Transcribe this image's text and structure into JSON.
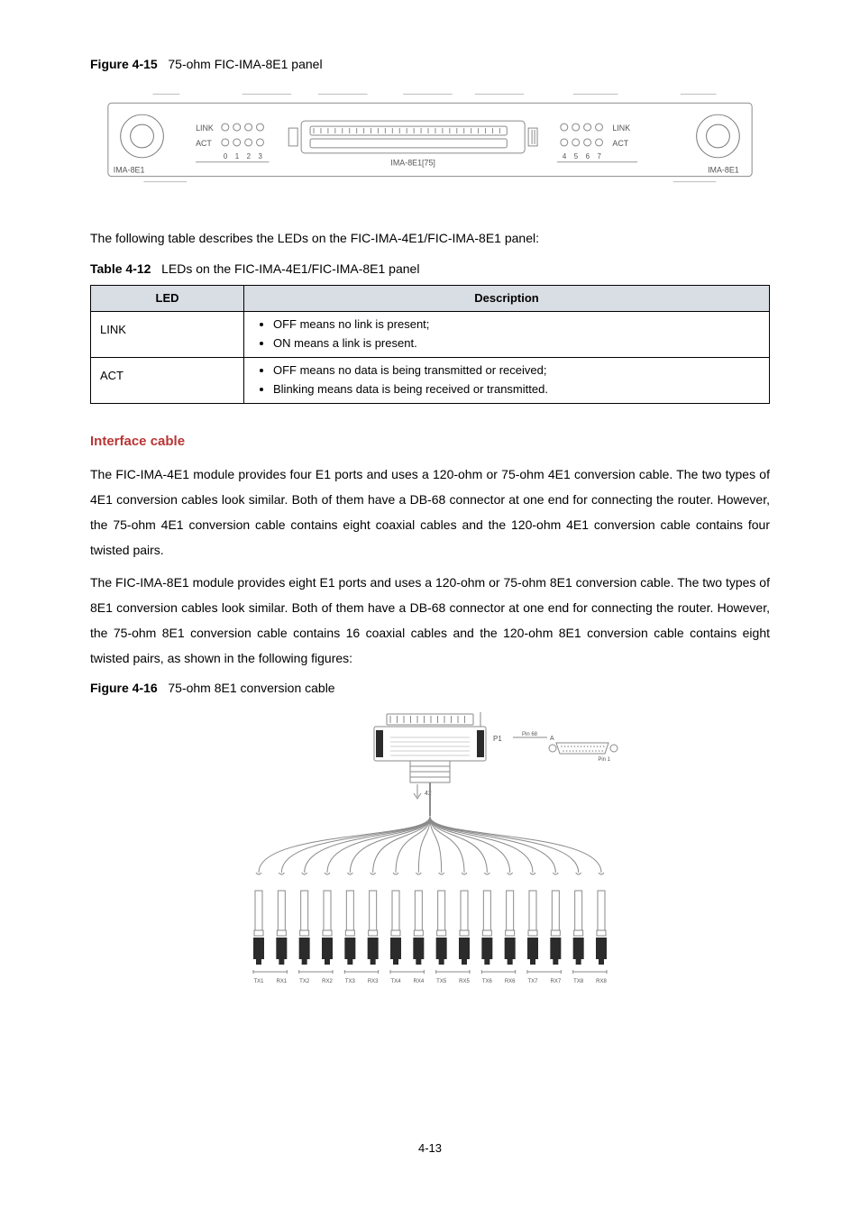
{
  "figure15": {
    "label": "Figure 4-15",
    "title": "75-ohm FIC-IMA-8E1 panel",
    "panel": {
      "left_text": "IMA-8E1",
      "right_text": "IMA-8E1",
      "link_label": "LINK",
      "act_label": "ACT",
      "left_numbers": [
        "0",
        "1",
        "2",
        "3"
      ],
      "right_numbers": [
        "4",
        "5",
        "6",
        "7"
      ],
      "connector_label": "IMA-8E1[75]",
      "colors": {
        "stroke": "#8a8a8a",
        "text": "#777777",
        "bg": "#ffffff"
      }
    }
  },
  "intro_paragraph": "The following table describes the LEDs on the FIC-IMA-4E1/FIC-IMA-8E1 panel:",
  "table12": {
    "label": "Table 4-12",
    "title": "LEDs on the FIC-IMA-4E1/FIC-IMA-8E1 panel",
    "headers": [
      "LED",
      "Description"
    ],
    "rows": [
      {
        "led": "LINK",
        "bullets": [
          "OFF means no link is present;",
          "ON means a link is present."
        ]
      },
      {
        "led": "ACT",
        "bullets": [
          "OFF means no data is being transmitted or received;",
          "Blinking means data is being received or transmitted."
        ]
      }
    ]
  },
  "interface_cable": {
    "heading": "Interface cable",
    "para1": "The FIC-IMA-4E1 module provides four E1 ports and uses a 120-ohm or 75-ohm 4E1 conversion cable. The two types of 4E1 conversion cables look similar. Both of them have a DB-68 connector at one end for connecting the router. However, the 75-ohm 4E1 conversion cable contains eight coaxial cables and the 120-ohm 4E1 conversion cable contains four twisted pairs.",
    "para2": "The FIC-IMA-8E1 module provides eight E1 ports and uses a 120-ohm or 75-ohm 8E1 conversion cable. The two types of 8E1 conversion cables look similar. Both of them have a DB-68 connector at one end for connecting the router. However, the 75-ohm 8E1 conversion cable contains 16 coaxial cables and the 120-ohm 8E1 conversion cable contains eight twisted pairs, as shown in the following figures:"
  },
  "figure16": {
    "label": "Figure 4-16",
    "title": "75-ohm 8E1 conversion cable",
    "diagram": {
      "pair_labels": [
        [
          "TX1",
          "RX1"
        ],
        [
          "TX2",
          "RX2"
        ],
        [
          "TX3",
          "RX3"
        ],
        [
          "TX4",
          "RX4"
        ],
        [
          "TX5",
          "RX5"
        ],
        [
          "TX6",
          "RX6"
        ],
        [
          "TX7",
          "RX7"
        ],
        [
          "TX8",
          "RX8"
        ]
      ],
      "conn_count": 16,
      "colors": {
        "line": "#8a8a8a",
        "dark": "#2b2b2b",
        "text": "#555555"
      }
    }
  },
  "page_number": "4-13"
}
